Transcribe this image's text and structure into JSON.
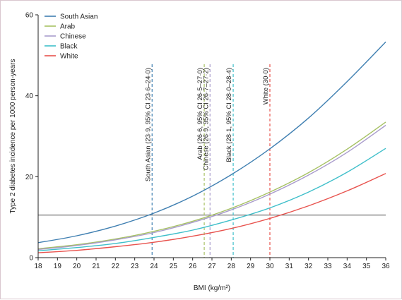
{
  "chart_data": {
    "type": "line",
    "xlabel": "BMI (kg/m²)",
    "ylabel": "Type 2 diabetes incidence per 1000 person-years",
    "xlim": [
      18,
      36
    ],
    "ylim": [
      0,
      60
    ],
    "x_ticks": [
      18,
      19,
      20,
      21,
      22,
      23,
      24,
      25,
      26,
      27,
      28,
      29,
      30,
      31,
      32,
      33,
      34,
      35,
      36
    ],
    "y_ticks": [
      0,
      20,
      40,
      60
    ],
    "reference_line_y": 10.5,
    "legend_position": "top-left",
    "series": [
      {
        "name": "South Asian",
        "color": "#3f7fb1",
        "x": [
          18,
          20,
          22,
          24,
          26,
          28,
          30,
          32,
          34,
          36
        ],
        "y": [
          3.7,
          5.4,
          7.8,
          11.0,
          15.2,
          20.5,
          26.9,
          34.5,
          43.5,
          53.3
        ]
      },
      {
        "name": "Arab",
        "color": "#a6c163",
        "x": [
          18,
          20,
          22,
          24,
          26,
          28,
          30,
          32,
          34,
          36
        ],
        "y": [
          2.2,
          3.2,
          4.6,
          6.5,
          9.0,
          12.2,
          16.2,
          21.0,
          26.8,
          33.5
        ]
      },
      {
        "name": "Chinese",
        "color": "#a99ccc",
        "x": [
          18,
          20,
          22,
          24,
          26,
          28,
          30,
          32,
          34,
          36
        ],
        "y": [
          2.0,
          3.0,
          4.4,
          6.2,
          8.7,
          11.8,
          15.7,
          20.4,
          26.0,
          32.7
        ]
      },
      {
        "name": "Black",
        "color": "#3fbfca",
        "x": [
          18,
          20,
          22,
          24,
          26,
          28,
          30,
          32,
          34,
          36
        ],
        "y": [
          1.7,
          2.5,
          3.5,
          5.0,
          6.8,
          9.3,
          12.3,
          16.2,
          21.1,
          27.0
        ]
      },
      {
        "name": "White",
        "color": "#e8534e",
        "x": [
          18,
          20,
          22,
          24,
          26,
          28,
          30,
          32,
          34,
          36
        ],
        "y": [
          1.2,
          1.8,
          2.7,
          3.8,
          5.3,
          7.2,
          9.7,
          12.8,
          16.5,
          20.8
        ]
      }
    ],
    "annotations": [
      {
        "text": "South Asian (23·9, 95% CI 23·6–24·0)",
        "x": 23.9,
        "color": "#3f7fb1"
      },
      {
        "text": "Arab (26·6, 95% CI 26·5–27·0)",
        "x": 26.6,
        "color": "#a6c163"
      },
      {
        "text": "Chinese (26·9, 95% CI 26·7–27·2)",
        "x": 26.9,
        "color": "#a99ccc"
      },
      {
        "text": "Black (28·1, 95% CI 28·0–28·4)",
        "x": 28.1,
        "color": "#3fbfca"
      },
      {
        "text": "White (30·0)",
        "x": 30.0,
        "color": "#e8534e"
      }
    ]
  }
}
